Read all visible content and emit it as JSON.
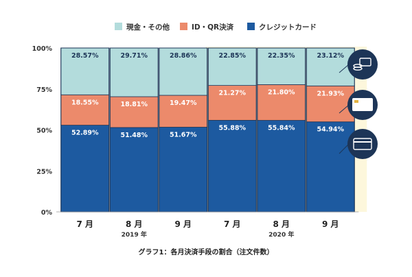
{
  "legend": [
    {
      "label": "現金・その他",
      "color": "#b3dcdc"
    },
    {
      "label": "ID・QR決済",
      "color": "#ec8a6b"
    },
    {
      "label": "クレジットカード",
      "color": "#1d5aa0"
    }
  ],
  "colors": {
    "highlight": "#fdf7dc",
    "outline": "#1d3557",
    "axis_text": "#333333",
    "icon_fill": "#1d3557"
  },
  "icons": [
    "coins-card-icon",
    "pay-card-icon",
    "credit-card-icon"
  ],
  "caption": "グラフ1：各月決済手段の割合（注文件数）",
  "chart_data": {
    "type": "bar",
    "stacked": true,
    "categories": [
      "7 月",
      "8 月",
      "9 月",
      "7 月",
      "8 月",
      "9 月"
    ],
    "year_labels": [
      {
        "label": "2019 年",
        "under_index": 1
      },
      {
        "label": "2020 年",
        "under_index": 4
      }
    ],
    "highlight_range": [
      3,
      5
    ],
    "y_ticks": [
      "0%",
      "25%",
      "50%",
      "75%",
      "100%"
    ],
    "ylim": [
      0,
      100
    ],
    "series": [
      {
        "name": "クレジットカード",
        "color": "#1d5aa0",
        "values": [
          52.89,
          51.48,
          51.67,
          55.88,
          55.84,
          54.94
        ],
        "labels": [
          "52.89%",
          "51.48%",
          "51.67%",
          "55.88%",
          "55.84%",
          "54.94%"
        ]
      },
      {
        "name": "ID・QR決済",
        "color": "#ec8a6b",
        "values": [
          18.55,
          18.81,
          19.47,
          21.27,
          21.8,
          21.93
        ],
        "labels": [
          "18.55%",
          "18.81%",
          "19.47%",
          "21.27%",
          "21.80%",
          "21.93%"
        ]
      },
      {
        "name": "現金・その他",
        "color": "#b3dcdc",
        "values": [
          28.57,
          29.71,
          28.86,
          22.85,
          22.35,
          23.12
        ],
        "labels": [
          "28.57%",
          "29.71%",
          "28.86%",
          "22.85%",
          "22.35%",
          "23.12%"
        ]
      }
    ],
    "grid": false,
    "legend_position": "top-center"
  }
}
